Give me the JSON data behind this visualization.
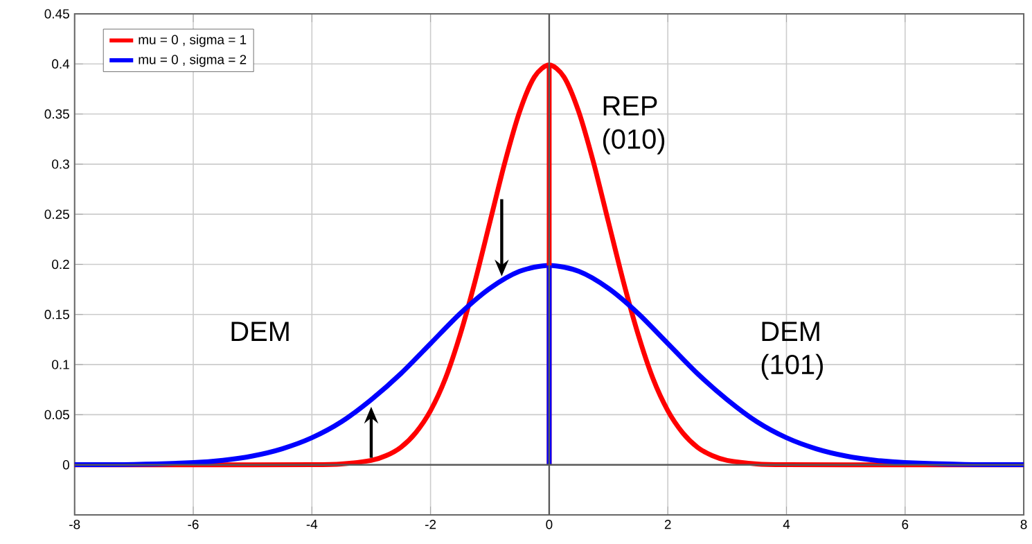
{
  "chart_data": {
    "type": "line",
    "xlim": [
      -8,
      8
    ],
    "ylim": [
      -0.05,
      0.45
    ],
    "xticks": [
      -8,
      -6,
      -4,
      -2,
      0,
      2,
      4,
      6,
      8
    ],
    "yticks": [
      0,
      0.05,
      0.1,
      0.15,
      0.2,
      0.25,
      0.3,
      0.35,
      0.4,
      0.45
    ],
    "grid": true,
    "legend": "top left",
    "marker": "none",
    "line_style": "solid",
    "series": [
      {
        "name": "mu = 0 , sigma = 1",
        "color": "#ff0000",
        "x": [
          -8,
          -5,
          -4,
          -3.5,
          -3,
          -2.75,
          -2.5,
          -2.25,
          -2,
          -1.75,
          -1.5,
          -1.25,
          -1,
          -0.75,
          -0.5,
          -0.25,
          0,
          0.25,
          0.5,
          0.75,
          1,
          1.25,
          1.5,
          1.75,
          2,
          2.25,
          2.5,
          2.75,
          3,
          3.5,
          4,
          5,
          8
        ],
        "values": [
          0,
          0,
          0.0001,
          0.0009,
          0.0044,
          0.0091,
          0.0175,
          0.032,
          0.054,
          0.086,
          0.13,
          0.183,
          0.242,
          0.301,
          0.352,
          0.387,
          0.399,
          0.387,
          0.352,
          0.301,
          0.242,
          0.183,
          0.13,
          0.086,
          0.054,
          0.032,
          0.0175,
          0.0091,
          0.0044,
          0.0009,
          0.0001,
          0,
          0
        ]
      },
      {
        "name": "mu = 0 , sigma = 2",
        "color": "#0000ff",
        "x": [
          -8,
          -7,
          -6,
          -5.5,
          -5,
          -4.5,
          -4,
          -3.5,
          -3,
          -2.5,
          -2,
          -1.5,
          -1,
          -0.5,
          0,
          0.5,
          1,
          1.5,
          2,
          2.5,
          3,
          3.5,
          4,
          4.5,
          5,
          5.5,
          6,
          7,
          8
        ],
        "values": [
          0.0001,
          0.0004,
          0.0022,
          0.0045,
          0.0088,
          0.016,
          0.027,
          0.043,
          0.065,
          0.091,
          0.121,
          0.151,
          0.176,
          0.193,
          0.199,
          0.193,
          0.176,
          0.151,
          0.121,
          0.091,
          0.065,
          0.043,
          0.027,
          0.016,
          0.0088,
          0.0045,
          0.0022,
          0.0004,
          0.0001
        ]
      },
      {
        "type": "line",
        "color": "#ff0000",
        "x": [
          0,
          0
        ],
        "values": [
          0,
          0.399
        ]
      },
      {
        "type": "line",
        "color": "#0000ff",
        "x": [
          0,
          0
        ],
        "values": [
          0,
          0.199
        ]
      }
    ],
    "annotations": [
      "REP (010)",
      "DEM",
      "DEM (101)"
    ]
  }
}
